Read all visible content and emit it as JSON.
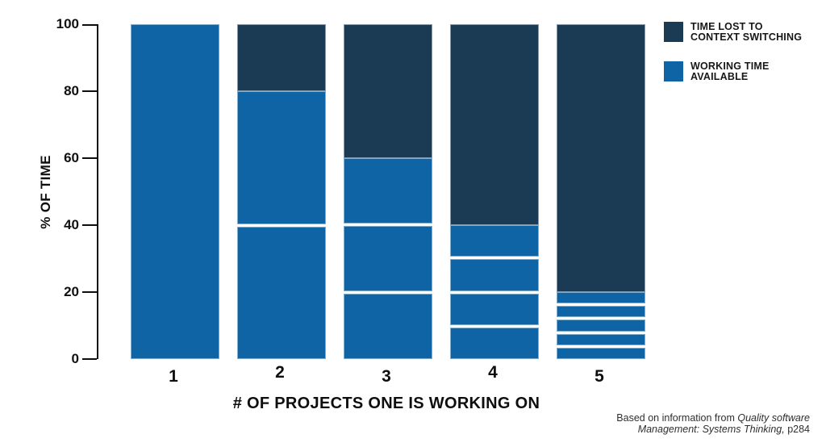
{
  "chart_data": {
    "type": "bar",
    "stacked": true,
    "title": "",
    "categories": [
      "1",
      "2",
      "3",
      "4",
      "5"
    ],
    "series": [
      {
        "name": "WORKING TIME AVAILABLE",
        "color": "#0f64a5",
        "values": [
          100,
          80,
          60,
          40,
          20
        ]
      },
      {
        "name": "TIME LOST TO CONTEXT SWITCHING",
        "color": "#1b3a54",
        "values": [
          0,
          20,
          40,
          60,
          80
        ]
      }
    ],
    "working_time_subsegments": [
      1,
      2,
      3,
      4,
      5
    ],
    "segment_divider_color": "#ffffff",
    "xlabel": "# OF PROJECTS ONE IS WORKING ON",
    "ylabel": "% OF TIME",
    "ylim": [
      0,
      100
    ],
    "yticks": [
      0,
      20,
      40,
      60,
      80,
      100
    ],
    "grid": false,
    "legend_position": "top-right"
  },
  "legend": {
    "items": [
      {
        "line1": "TIME LOST TO",
        "line2": "CONTEXT SWITCHING",
        "color": "#1b3a54"
      },
      {
        "line1": "WORKING TIME",
        "line2": "AVAILABLE",
        "color": "#0f64a5"
      }
    ]
  },
  "footnote": {
    "line1_regular": "Based on information from ",
    "line1_italic": "Quality software",
    "line2_italic": "Management: Systems Thinking,",
    "line2_regular": " p284"
  }
}
